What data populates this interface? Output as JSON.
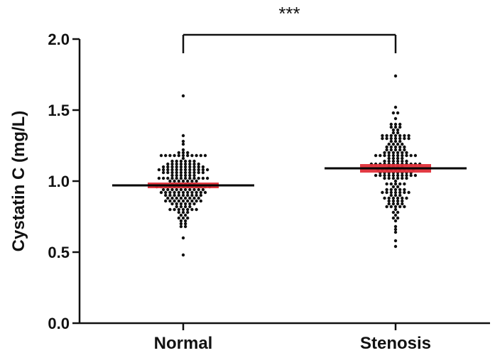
{
  "chart_data": {
    "type": "scatter",
    "subtype": "dot-plot-with-median-and-ci",
    "ylabel": "Cystatin C (mg/L)",
    "ylim": [
      0.0,
      2.0
    ],
    "yticks": [
      "0.0",
      "0.5",
      "1.0",
      "1.5",
      "2.0"
    ],
    "categories": [
      "Normal",
      "Stenosis"
    ],
    "significance": "***",
    "series": [
      {
        "category": "Normal",
        "median": 0.97,
        "ci": [
          0.95,
          0.99
        ],
        "n": 190,
        "min": 0.48,
        "max": 1.59,
        "approx_distribution": {
          "center": 0.97,
          "spread": 0.14
        }
      },
      {
        "category": "Stenosis",
        "median": 1.09,
        "ci": [
          1.06,
          1.12
        ],
        "n": 175,
        "min": 0.53,
        "max": 1.74,
        "approx_distribution": {
          "center": 1.09,
          "spread": 0.2
        }
      }
    ],
    "colors": {
      "points": "#111111",
      "median_line": "#000000",
      "ci_band": "#e0303a"
    }
  }
}
